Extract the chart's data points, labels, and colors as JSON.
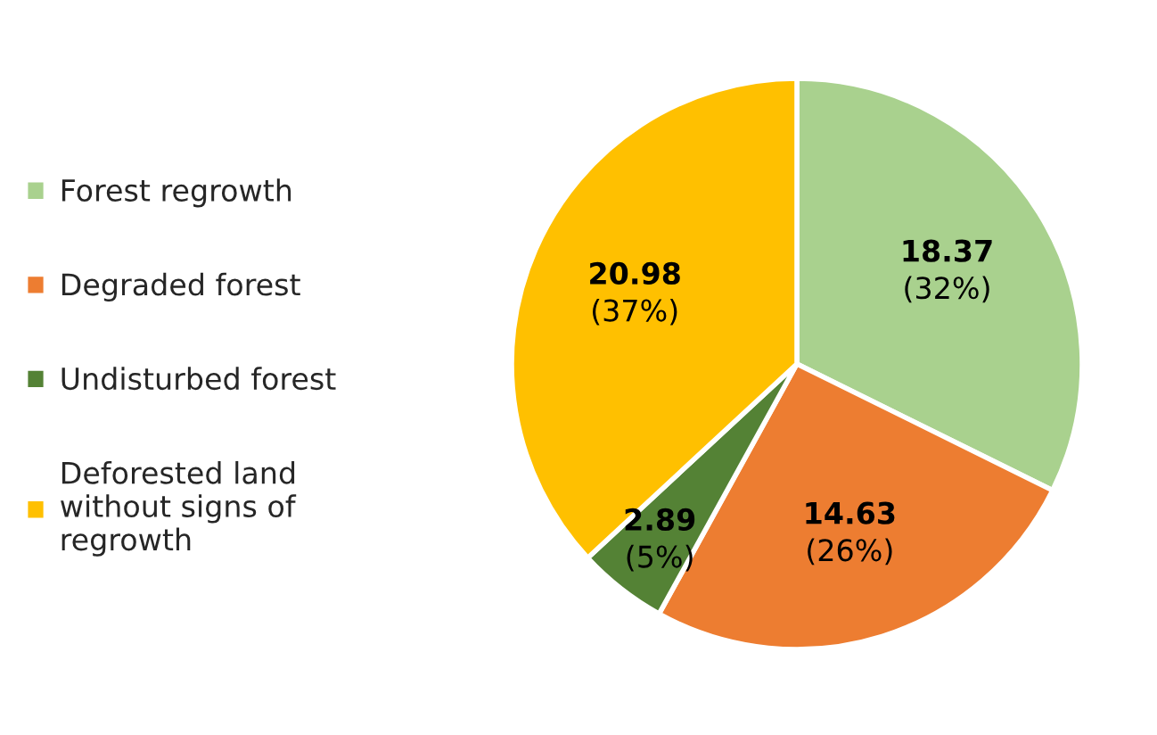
{
  "chart_data": {
    "type": "pie",
    "categories": [
      "Forest regrowth",
      "Degraded forest",
      "Undisturbed forest",
      "Deforested land\nwithout signs of\nregrowth"
    ],
    "values": [
      18.37,
      14.63,
      2.89,
      20.98
    ],
    "colors": [
      "#a9d18e",
      "#ed7d31",
      "#548235",
      "#ffc000"
    ],
    "value_labels": [
      "18.37\n(32%)",
      "14.63\n(26%)",
      "2.89\n(5%)",
      "20.98\n(37%)"
    ],
    "legend": "left"
  }
}
